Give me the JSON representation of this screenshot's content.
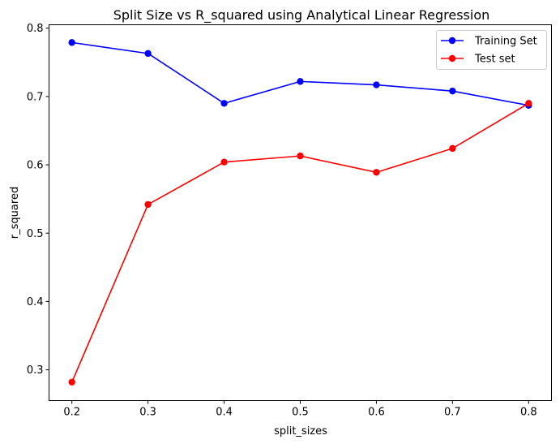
{
  "chart_data": {
    "type": "line",
    "title": "Split Size vs R_squared using Analytical Linear Regression",
    "xlabel": "split_sizes",
    "ylabel": "r_squared",
    "x": [
      0.2,
      0.3,
      0.4,
      0.5,
      0.6,
      0.7,
      0.8
    ],
    "xlim": [
      0.17,
      0.83
    ],
    "ylim": [
      0.255,
      0.805
    ],
    "x_ticks": [
      "0.2",
      "0.3",
      "0.4",
      "0.5",
      "0.6",
      "0.7",
      "0.8"
    ],
    "y_ticks": [
      "0.3",
      "0.4",
      "0.5",
      "0.6",
      "0.7",
      "0.8"
    ],
    "legend_position": "top-right",
    "grid": false,
    "series": [
      {
        "name": "Training Set",
        "color": "#0000ff",
        "values": [
          0.779,
          0.763,
          0.69,
          0.722,
          0.717,
          0.708,
          0.687
        ]
      },
      {
        "name": "Test set",
        "color": "#ff0000",
        "values": [
          0.282,
          0.542,
          0.604,
          0.613,
          0.589,
          0.624,
          0.69
        ]
      }
    ]
  }
}
